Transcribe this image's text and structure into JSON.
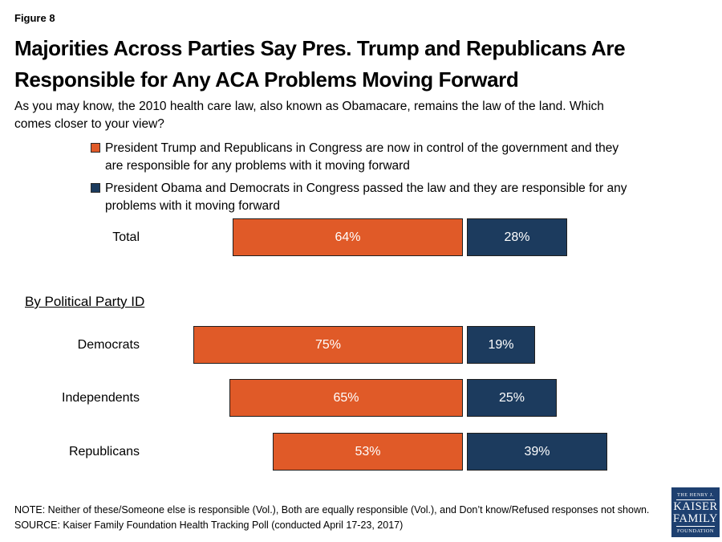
{
  "figure_label": "Figure 8",
  "title_lines": [
    "Majorities Across Parties Say Pres. Trump and Republicans Are",
    "Responsible for Any ACA Problems Moving Forward"
  ],
  "question_lines": [
    "As you may know, the 2010 health care law, also known as Obamacare, remains the law of the land. Which",
    "comes closer to your view?"
  ],
  "colors": {
    "orange": "#E05A28",
    "navy": "#1C3B5E",
    "logo_navy": "#1E4070"
  },
  "legend": [
    {
      "icon": "orange-swatch",
      "color": "#E05A28",
      "lines": [
        "President Trump and Republicans in Congress are now in control of the government and they",
        "are responsible for any problems with it moving forward"
      ]
    },
    {
      "icon": "navy-swatch",
      "color": "#1C3B5E",
      "lines": [
        "President Obama and Democrats in Congress passed the law and they are responsible for any",
        "problems with it moving forward"
      ]
    }
  ],
  "section_heading": "By Political Party ID",
  "chart_data": {
    "type": "bar",
    "orientation": "horizontal",
    "unit": "percent",
    "value_suffix": "%",
    "categories": [
      "Total",
      "Democrats",
      "Independents",
      "Republicans"
    ],
    "series": [
      {
        "name": "President Trump and Republicans responsible",
        "color": "#E05A28",
        "values": [
          64,
          75,
          65,
          53
        ]
      },
      {
        "name": "President Obama and Democrats responsible",
        "color": "#1C3B5E",
        "values": [
          28,
          19,
          25,
          39
        ]
      }
    ],
    "xlim": [
      0,
      100
    ],
    "grid": false,
    "legend_position": "top"
  },
  "note_lines": [
    "NOTE: Neither of these/Someone else is responsible (Vol.), Both are equally responsible (Vol.), and Don’t know/Refused responses not shown.",
    "SOURCE: Kaiser Family Foundation Health Tracking Poll (conducted April 17-23, 2017)"
  ],
  "logo": {
    "line1": "THE HENRY J.",
    "line2": "KAISER",
    "line3": "FAMILY",
    "line4": "FOUNDATION"
  }
}
